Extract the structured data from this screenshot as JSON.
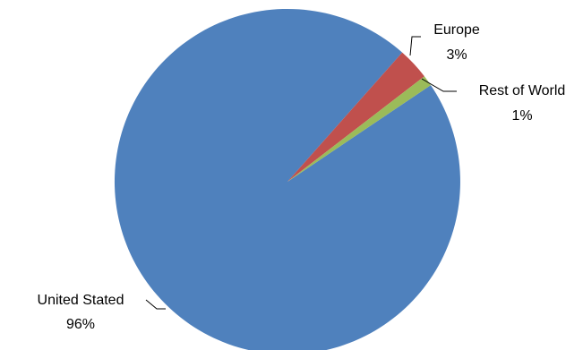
{
  "chart_data": {
    "type": "pie",
    "slices": [
      {
        "label": "United Stated",
        "value": 96,
        "value_label": "96%",
        "color": "#4F81BD"
      },
      {
        "label": "Europe",
        "value": 3,
        "value_label": "3%",
        "color": "#C0504D"
      },
      {
        "label": "Rest of World",
        "value": 1,
        "value_label": "1%",
        "color": "#9BBB59"
      }
    ],
    "start_angle_deg": 56,
    "direction": "clockwise",
    "legend": "none",
    "data_labels": "outside with leader lines"
  }
}
